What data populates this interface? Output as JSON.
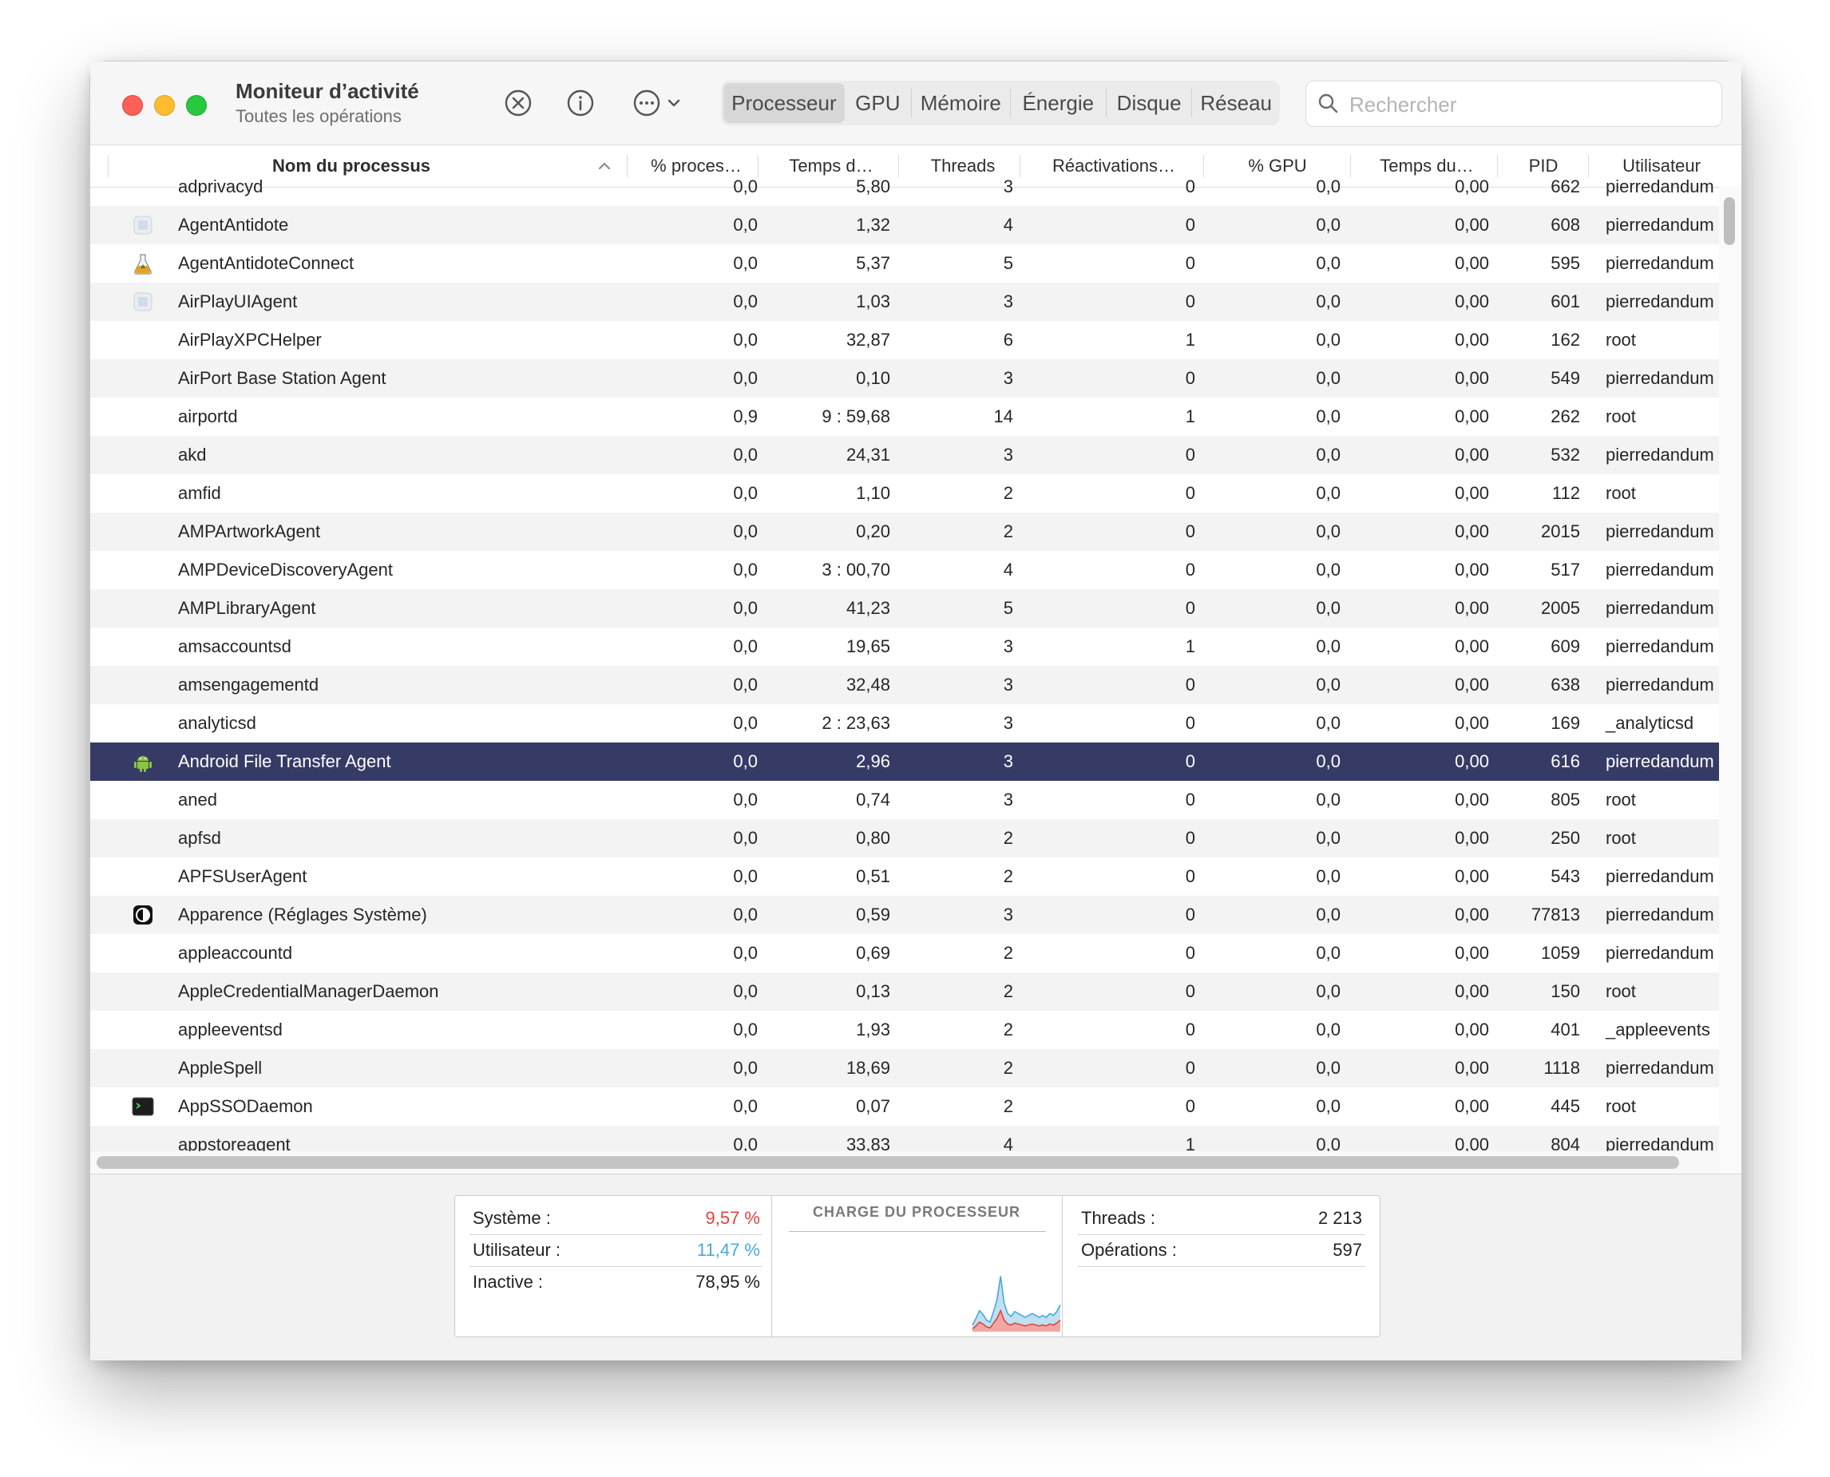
{
  "window": {
    "title": "Moniteur d’activité",
    "subtitle": "Toutes les opérations"
  },
  "toolbar": {
    "icons": [
      "stop-process-icon",
      "info-icon",
      "more-actions-icon",
      "chevron-down-icon"
    ],
    "tabs": [
      {
        "label": "Processeur",
        "active": true
      },
      {
        "label": "GPU",
        "active": false
      },
      {
        "label": "Mémoire",
        "active": false
      },
      {
        "label": "Énergie",
        "active": false
      },
      {
        "label": "Disque",
        "active": false
      },
      {
        "label": "Réseau",
        "active": false
      }
    ],
    "search_placeholder": "Rechercher"
  },
  "table": {
    "columns": [
      "Nom du processus",
      "% proces…",
      "Temps d…",
      "Threads",
      "Réactivations…",
      "% GPU",
      "Temps du…",
      "PID",
      "Utilisateur"
    ],
    "sorted_column": "Nom du processus",
    "rows": [
      {
        "name": "adprivacyd",
        "icon": "",
        "cpu": "0,0",
        "time": "5,80",
        "threads": "3",
        "wakeups": "0",
        "gpu": "0,0",
        "gputime": "0,00",
        "pid": "662",
        "user": "pierredandum"
      },
      {
        "name": "AgentAntidote",
        "icon": "generic-app-icon",
        "cpu": "0,0",
        "time": "1,32",
        "threads": "4",
        "wakeups": "0",
        "gpu": "0,0",
        "gputime": "0,00",
        "pid": "608",
        "user": "pierredandum"
      },
      {
        "name": "AgentAntidoteConnect",
        "icon": "flask-icon",
        "cpu": "0,0",
        "time": "5,37",
        "threads": "5",
        "wakeups": "0",
        "gpu": "0,0",
        "gputime": "0,00",
        "pid": "595",
        "user": "pierredandum"
      },
      {
        "name": "AirPlayUIAgent",
        "icon": "generic-app-icon",
        "cpu": "0,0",
        "time": "1,03",
        "threads": "3",
        "wakeups": "0",
        "gpu": "0,0",
        "gputime": "0,00",
        "pid": "601",
        "user": "pierredandum"
      },
      {
        "name": "AirPlayXPCHelper",
        "icon": "",
        "cpu": "0,0",
        "time": "32,87",
        "threads": "6",
        "wakeups": "1",
        "gpu": "0,0",
        "gputime": "0,00",
        "pid": "162",
        "user": "root"
      },
      {
        "name": "AirPort Base Station Agent",
        "icon": "",
        "cpu": "0,0",
        "time": "0,10",
        "threads": "3",
        "wakeups": "0",
        "gpu": "0,0",
        "gputime": "0,00",
        "pid": "549",
        "user": "pierredandum"
      },
      {
        "name": "airportd",
        "icon": "",
        "cpu": "0,9",
        "time": "9 : 59,68",
        "threads": "14",
        "wakeups": "1",
        "gpu": "0,0",
        "gputime": "0,00",
        "pid": "262",
        "user": "root"
      },
      {
        "name": "akd",
        "icon": "",
        "cpu": "0,0",
        "time": "24,31",
        "threads": "3",
        "wakeups": "0",
        "gpu": "0,0",
        "gputime": "0,00",
        "pid": "532",
        "user": "pierredandum"
      },
      {
        "name": "amfid",
        "icon": "",
        "cpu": "0,0",
        "time": "1,10",
        "threads": "2",
        "wakeups": "0",
        "gpu": "0,0",
        "gputime": "0,00",
        "pid": "112",
        "user": "root"
      },
      {
        "name": "AMPArtworkAgent",
        "icon": "",
        "cpu": "0,0",
        "time": "0,20",
        "threads": "2",
        "wakeups": "0",
        "gpu": "0,0",
        "gputime": "0,00",
        "pid": "2015",
        "user": "pierredandum"
      },
      {
        "name": "AMPDeviceDiscoveryAgent",
        "icon": "",
        "cpu": "0,0",
        "time": "3 : 00,70",
        "threads": "4",
        "wakeups": "0",
        "gpu": "0,0",
        "gputime": "0,00",
        "pid": "517",
        "user": "pierredandum"
      },
      {
        "name": "AMPLibraryAgent",
        "icon": "",
        "cpu": "0,0",
        "time": "41,23",
        "threads": "5",
        "wakeups": "0",
        "gpu": "0,0",
        "gputime": "0,00",
        "pid": "2005",
        "user": "pierredandum"
      },
      {
        "name": "amsaccountsd",
        "icon": "",
        "cpu": "0,0",
        "time": "19,65",
        "threads": "3",
        "wakeups": "1",
        "gpu": "0,0",
        "gputime": "0,00",
        "pid": "609",
        "user": "pierredandum"
      },
      {
        "name": "amsengagementd",
        "icon": "",
        "cpu": "0,0",
        "time": "32,48",
        "threads": "3",
        "wakeups": "0",
        "gpu": "0,0",
        "gputime": "0,00",
        "pid": "638",
        "user": "pierredandum"
      },
      {
        "name": "analyticsd",
        "icon": "",
        "cpu": "0,0",
        "time": "2 : 23,63",
        "threads": "3",
        "wakeups": "0",
        "gpu": "0,0",
        "gputime": "0,00",
        "pid": "169",
        "user": "_analyticsd"
      },
      {
        "name": "Android File Transfer Agent",
        "icon": "android-icon",
        "cpu": "0,0",
        "time": "2,96",
        "threads": "3",
        "wakeups": "0",
        "gpu": "0,0",
        "gputime": "0,00",
        "pid": "616",
        "user": "pierredandum",
        "selected": true
      },
      {
        "name": "aned",
        "icon": "",
        "cpu": "0,0",
        "time": "0,74",
        "threads": "3",
        "wakeups": "0",
        "gpu": "0,0",
        "gputime": "0,00",
        "pid": "805",
        "user": "root"
      },
      {
        "name": "apfsd",
        "icon": "",
        "cpu": "0,0",
        "time": "0,80",
        "threads": "2",
        "wakeups": "0",
        "gpu": "0,0",
        "gputime": "0,00",
        "pid": "250",
        "user": "root"
      },
      {
        "name": "APFSUserAgent",
        "icon": "",
        "cpu": "0,0",
        "time": "0,51",
        "threads": "2",
        "wakeups": "0",
        "gpu": "0,0",
        "gputime": "0,00",
        "pid": "543",
        "user": "pierredandum"
      },
      {
        "name": "Apparence (Réglages Système)",
        "icon": "appearance-icon",
        "cpu": "0,0",
        "time": "0,59",
        "threads": "3",
        "wakeups": "0",
        "gpu": "0,0",
        "gputime": "0,00",
        "pid": "77813",
        "user": "pierredandum"
      },
      {
        "name": "appleaccountd",
        "icon": "",
        "cpu": "0,0",
        "time": "0,69",
        "threads": "2",
        "wakeups": "0",
        "gpu": "0,0",
        "gputime": "0,00",
        "pid": "1059",
        "user": "pierredandum"
      },
      {
        "name": "AppleCredentialManagerDaemon",
        "icon": "",
        "cpu": "0,0",
        "time": "0,13",
        "threads": "2",
        "wakeups": "0",
        "gpu": "0,0",
        "gputime": "0,00",
        "pid": "150",
        "user": "root"
      },
      {
        "name": "appleeventsd",
        "icon": "",
        "cpu": "0,0",
        "time": "1,93",
        "threads": "2",
        "wakeups": "0",
        "gpu": "0,0",
        "gputime": "0,00",
        "pid": "401",
        "user": "_appleevents"
      },
      {
        "name": "AppleSpell",
        "icon": "",
        "cpu": "0,0",
        "time": "18,69",
        "threads": "2",
        "wakeups": "0",
        "gpu": "0,0",
        "gputime": "0,00",
        "pid": "1118",
        "user": "pierredandum"
      },
      {
        "name": "AppSSODaemon",
        "icon": "terminal-icon",
        "cpu": "0,0",
        "time": "0,07",
        "threads": "2",
        "wakeups": "0",
        "gpu": "0,0",
        "gputime": "0,00",
        "pid": "445",
        "user": "root"
      },
      {
        "name": "appstoreagent",
        "icon": "",
        "cpu": "0,0",
        "time": "33,83",
        "threads": "4",
        "wakeups": "1",
        "gpu": "0,0",
        "gputime": "0,00",
        "pid": "804",
        "user": "pierredandum"
      }
    ]
  },
  "footer": {
    "stats_left": [
      {
        "label": "Système :",
        "value": "9,57 %",
        "color": "#e0443e"
      },
      {
        "label": "Utilisateur :",
        "value": "11,47 %",
        "color": "#4aa8d8"
      },
      {
        "label": "Inactive :",
        "value": "78,95 %",
        "color": "#222222"
      }
    ],
    "chart_title": "CHARGE DU PROCESSEUR",
    "stats_right": [
      {
        "label": "Threads :",
        "value": "2 213"
      },
      {
        "label": "Opérations :",
        "value": "597"
      }
    ]
  },
  "chart_data": {
    "type": "area",
    "title": "CHARGE DU PROCESSEUR",
    "xlabel": "",
    "ylabel": "",
    "ylim": [
      0,
      100
    ],
    "x": [
      0,
      1,
      2,
      3,
      4,
      5,
      6,
      7,
      8,
      9,
      10,
      11,
      12,
      13,
      14,
      15,
      16,
      17,
      18,
      19,
      20,
      21,
      22,
      23,
      24,
      25
    ],
    "series": [
      {
        "name": "Système",
        "color": "#e0443e",
        "values": [
          3,
          6,
          10,
          8,
          5,
          4,
          9,
          14,
          22,
          12,
          8,
          7,
          9,
          8,
          7,
          6,
          7,
          8,
          7,
          6,
          7,
          6,
          8,
          7,
          9,
          12
        ]
      },
      {
        "name": "Utilisateur",
        "color": "#4aa8d8",
        "values": [
          4,
          8,
          12,
          10,
          7,
          6,
          12,
          20,
          36,
          18,
          11,
          9,
          12,
          11,
          10,
          9,
          10,
          11,
          10,
          9,
          10,
          9,
          11,
          10,
          12,
          16
        ]
      }
    ]
  }
}
